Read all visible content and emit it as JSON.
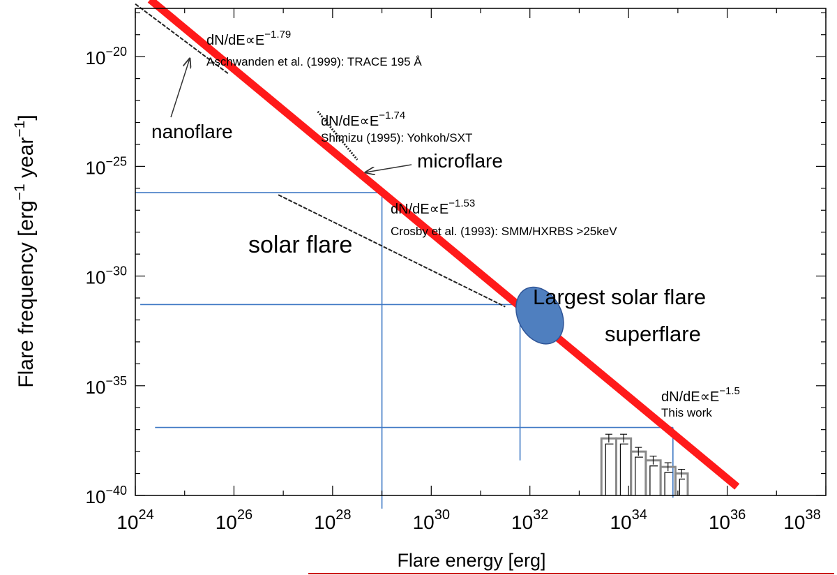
{
  "chart_data": {
    "type": "line",
    "xlabel": "Flare energy [erg]",
    "ylabel": "Flare frequency [erg",
    "ylabel_sup1": "−1",
    "ylabel_mid": " year",
    "ylabel_sup2": "−1",
    "ylabel_end": "]",
    "x_scale": "log",
    "y_scale": "log",
    "xlim_exp": [
      24,
      38
    ],
    "ylim_exp": [
      -40,
      -17
    ],
    "x_ticks": [
      {
        "base": "10",
        "exp": "24",
        "value": 24
      },
      {
        "base": "10",
        "exp": "26",
        "value": 26
      },
      {
        "base": "10",
        "exp": "28",
        "value": 28
      },
      {
        "base": "10",
        "exp": "30",
        "value": 30
      },
      {
        "base": "10",
        "exp": "32",
        "value": 32
      },
      {
        "base": "10",
        "exp": "34",
        "value": 34
      },
      {
        "base": "10",
        "exp": "36",
        "value": 36
      },
      {
        "base": "10",
        "exp": "38",
        "value": 38
      }
    ],
    "y_ticks": [
      {
        "base": "10",
        "exp": "−20",
        "value": -20
      },
      {
        "base": "10",
        "exp": "−25",
        "value": -25
      },
      {
        "base": "10",
        "exp": "−30",
        "value": -30
      },
      {
        "base": "10",
        "exp": "−35",
        "value": -35
      },
      {
        "base": "10",
        "exp": "−40",
        "value": -40
      }
    ],
    "series": [
      {
        "color": "#ff1a1a",
        "points": [
          [
            24.3,
            -17.4
          ],
          [
            36.2,
            -39.6
          ]
        ]
      }
    ],
    "segments": [
      {
        "points": [
          [
            24.0,
            -17.6
          ],
          [
            25.9,
            -20.8
          ]
        ],
        "style": "dashed"
      },
      {
        "points": [
          [
            27.7,
            -22.5
          ],
          [
            28.5,
            -24.7
          ]
        ],
        "style": "dotted"
      },
      {
        "points": [
          [
            26.9,
            -26.3
          ],
          [
            31.5,
            -31.4
          ]
        ],
        "style": "dashed"
      }
    ],
    "ellipse": {
      "x": 32.2,
      "y": -31.8,
      "color": "#4f7fbf"
    },
    "blue_lines": [
      {
        "points": [
          [
            24.0,
            -26.2
          ],
          [
            29.0,
            -26.2
          ]
        ]
      },
      {
        "points": [
          [
            29.0,
            -26.2
          ],
          [
            29.0,
            -40.6
          ]
        ]
      },
      {
        "points": [
          [
            24.1,
            -31.3
          ],
          [
            31.8,
            -31.3
          ]
        ]
      },
      {
        "points": [
          [
            31.8,
            -31.3
          ],
          [
            31.8,
            -38.4
          ]
        ]
      },
      {
        "points": [
          [
            24.4,
            -36.9
          ],
          [
            34.9,
            -36.9
          ]
        ]
      },
      {
        "points": [
          [
            34.9,
            -36.9
          ],
          [
            34.9,
            -40.1
          ]
        ]
      }
    ],
    "histogram_bins": [
      {
        "x0": 33.45,
        "x1": 33.75,
        "y": -37.4
      },
      {
        "x0": 33.75,
        "x1": 34.05,
        "y": -37.4
      },
      {
        "x0": 34.05,
        "x1": 34.35,
        "y": -38.0
      },
      {
        "x0": 34.35,
        "x1": 34.65,
        "y": -38.4
      },
      {
        "x0": 34.65,
        "x1": 34.95,
        "y": -38.7
      },
      {
        "x0": 34.95,
        "x1": 35.2,
        "y": -39.0
      }
    ],
    "annotations": [
      {
        "label": "dN/dE∝E",
        "sup": "−1.79",
        "size": 20
      },
      {
        "label": "Aschwanden et al. (1999): TRACE 195 Å",
        "size": 17
      },
      {
        "label": "nanoflare",
        "size": 28
      },
      {
        "label": "dN/dE∝E",
        "sup": "−1.74",
        "size": 20
      },
      {
        "label": "Shimizu (1995): Yohkoh/SXT",
        "size": 17
      },
      {
        "label": "microflare",
        "size": 28
      },
      {
        "label": "dN/dE∝E",
        "sup": "−1.53",
        "size": 20
      },
      {
        "label": "Crosby et al. (1993): SMM/HXRBS >25keV",
        "size": 17
      },
      {
        "label": "solar flare",
        "size": 34
      },
      {
        "label": "Largest solar flare",
        "size": 31
      },
      {
        "label": "superflare",
        "size": 31,
        "color": "#ff2020"
      },
      {
        "label": "dN/dE∝E",
        "sup": "−1.5",
        "size": 20
      },
      {
        "label": "This work",
        "size": 17
      }
    ],
    "accent_color": "#cc0000"
  }
}
